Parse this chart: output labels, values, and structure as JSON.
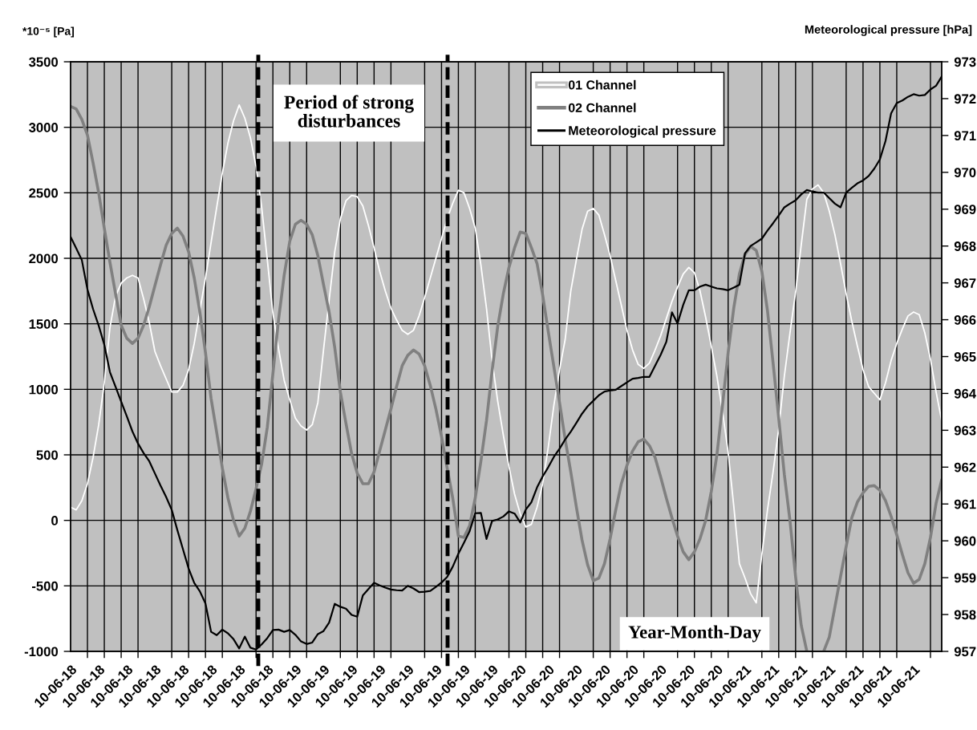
{
  "chart_data": {
    "type": "line",
    "xlabel": "Year-Month-Day",
    "ylabel": "*10⁻⁵ [Pa]",
    "y2label": "Meteorological pressure [hPa]",
    "annotations": [
      "Period of strong\ndisturbances"
    ],
    "categories": [
      "10-06-18",
      null,
      null,
      null,
      null,
      "10-06-18",
      null,
      null,
      null,
      null,
      "10-06-18",
      null,
      null,
      null,
      null,
      "10-06-18",
      null,
      null,
      null,
      null,
      "10-06-18",
      null,
      null,
      null,
      null,
      "10-06-18",
      null,
      null,
      null,
      null,
      "10-06-18",
      null,
      null,
      null,
      null,
      "10-06-18",
      null,
      null,
      null,
      null,
      "10-06-19",
      null,
      null,
      null,
      null,
      "10-06-19",
      null,
      null,
      null,
      null,
      "10-06-19",
      null,
      null,
      null,
      null,
      "10-06-19",
      null,
      null,
      null,
      null,
      "10-06-19",
      null,
      null,
      null,
      null,
      "10-06-19",
      null,
      null,
      null,
      null,
      "10-06-19",
      null,
      null,
      null,
      null,
      "10-06-19",
      null,
      null,
      null,
      null,
      "10-06-20",
      null,
      null,
      null,
      null,
      "10-06-20",
      null,
      null,
      null,
      null,
      "10-06-20",
      null,
      null,
      null,
      null,
      "10-06-20",
      null,
      null,
      null,
      null,
      "10-06-20",
      null,
      null,
      null,
      null,
      "10-06-20",
      null,
      null,
      null,
      null,
      "10-06-20",
      null,
      null,
      null,
      null,
      "10-06-20",
      null,
      null,
      null,
      null,
      "10-06-21",
      null,
      null,
      null,
      null,
      "10-06-21",
      null,
      null,
      null,
      null,
      "10-06-21",
      null,
      null,
      null,
      null,
      "10-06-21",
      null,
      null,
      null,
      null,
      "10-06-21",
      null,
      null,
      null,
      null,
      "10-06-21",
      null,
      null,
      null,
      null,
      "10-06-21",
      null,
      null,
      null,
      null,
      null
    ],
    "ylim": [
      -1000,
      3500
    ],
    "yticks": [
      -1000,
      -500,
      0,
      500,
      1000,
      1500,
      2000,
      2500,
      3000,
      3500
    ],
    "y2lim": [
      957,
      973
    ],
    "y2ticks": [
      957,
      958,
      959,
      960,
      961,
      962,
      963,
      964,
      965,
      966,
      967,
      968,
      969,
      970,
      971,
      972,
      973
    ],
    "grid": true,
    "legend": "top right",
    "series": [
      {
        "name": "01 Channel",
        "color": "#ffffff",
        "values": [
          100,
          80,
          150,
          280,
          480,
          730,
          1050,
          1470,
          1710,
          1810,
          1850,
          1870,
          1850,
          1690,
          1510,
          1290,
          1180,
          1080,
          980,
          980,
          1030,
          1150,
          1350,
          1600,
          1850,
          2120,
          2390,
          2650,
          2880,
          3050,
          3170,
          3070,
          2920,
          2700,
          2390,
          1990,
          1580,
          1310,
          1070,
          920,
          780,
          720,
          690,
          730,
          900,
          1300,
          1680,
          2050,
          2300,
          2440,
          2480,
          2470,
          2400,
          2250,
          2080,
          1900,
          1750,
          1620,
          1530,
          1450,
          1420,
          1450,
          1560,
          1700,
          1850,
          2000,
          2150,
          2300,
          2420,
          2520,
          2500,
          2380,
          2230,
          1950,
          1620,
          1220,
          910,
          650,
          410,
          200,
          50,
          -50,
          -30,
          100,
          280,
          560,
          880,
          1150,
          1380,
          1750,
          1990,
          2220,
          2360,
          2380,
          2330,
          2180,
          2020,
          1830,
          1640,
          1450,
          1300,
          1190,
          1160,
          1200,
          1300,
          1410,
          1540,
          1670,
          1780,
          1880,
          1930,
          1890,
          1750,
          1550,
          1330,
          1100,
          830,
          520,
          110,
          -330,
          -440,
          -560,
          -630,
          -260,
          80,
          370,
          700,
          1100,
          1430,
          1740,
          2100,
          2450,
          2530,
          2560,
          2500,
          2360,
          2180,
          1960,
          1730,
          1520,
          1330,
          1150,
          1020,
          970,
          920,
          1050,
          1220,
          1350,
          1460,
          1560,
          1590,
          1570,
          1430,
          1230,
          980,
          760
        ]
      },
      {
        "name": "02 Channel",
        "color": "#808080",
        "values": [
          3160,
          3140,
          3060,
          2940,
          2730,
          2500,
          2230,
          1970,
          1730,
          1490,
          1390,
          1350,
          1390,
          1490,
          1630,
          1790,
          1950,
          2100,
          2190,
          2230,
          2170,
          2050,
          1850,
          1590,
          1280,
          930,
          670,
          400,
          170,
          0,
          -120,
          -60,
          70,
          240,
          430,
          710,
          1120,
          1530,
          1870,
          2130,
          2260,
          2290,
          2260,
          2180,
          2020,
          1800,
          1590,
          1320,
          980,
          740,
          510,
          360,
          280,
          280,
          370,
          530,
          690,
          850,
          1020,
          1180,
          1260,
          1300,
          1270,
          1180,
          1030,
          850,
          640,
          400,
          170,
          -120,
          -130,
          -40,
          170,
          450,
          760,
          1140,
          1480,
          1730,
          1930,
          2080,
          2200,
          2190,
          2080,
          1960,
          1720,
          1440,
          1170,
          900,
          620,
          370,
          100,
          -150,
          -340,
          -460,
          -440,
          -330,
          -140,
          80,
          280,
          420,
          530,
          600,
          620,
          570,
          480,
          330,
          170,
          20,
          -120,
          -240,
          -300,
          -240,
          -140,
          0,
          220,
          500,
          880,
          1280,
          1620,
          1880,
          2030,
          2090,
          2060,
          1900,
          1600,
          1200,
          780,
          350,
          0,
          -430,
          -800,
          -1000,
          null,
          null,
          -1000,
          -890,
          -660,
          -430,
          -200,
          20,
          140,
          210,
          260,
          265,
          230,
          150,
          30,
          -110,
          -260,
          -400,
          -480,
          -450,
          -330,
          -130,
          130,
          310
        ]
      },
      {
        "name": "Meteorological pressure",
        "color": "#000000",
        "axis": "y2",
        "values": [
          968.25,
          967.94,
          967.62,
          966.82,
          966.29,
          965.84,
          965.32,
          964.58,
          964.18,
          963.78,
          963.38,
          962.97,
          962.64,
          962.38,
          962.16,
          961.83,
          961.5,
          961.19,
          960.84,
          960.29,
          959.77,
          959.25,
          958.86,
          958.63,
          958.3,
          957.53,
          957.44,
          957.59,
          957.49,
          957.33,
          957.08,
          957.4,
          957.1,
          957.05,
          957.19,
          957.36,
          957.58,
          957.59,
          957.53,
          957.58,
          957.45,
          957.27,
          957.2,
          957.24,
          957.47,
          957.55,
          957.78,
          958.29,
          958.21,
          958.16,
          957.99,
          957.94,
          958.52,
          958.69,
          958.86,
          958.79,
          958.73,
          958.68,
          958.66,
          958.65,
          958.78,
          958.71,
          958.61,
          958.62,
          958.64,
          958.75,
          958.87,
          959.02,
          959.3,
          959.65,
          959.95,
          960.26,
          960.75,
          960.76,
          960.05,
          960.54,
          960.58,
          960.66,
          960.8,
          960.74,
          960.5,
          960.85,
          961.05,
          961.45,
          961.75,
          962.0,
          962.28,
          962.5,
          962.75,
          962.96,
          963.2,
          963.45,
          963.65,
          963.8,
          963.95,
          964.05,
          964.08,
          964.1,
          964.2,
          964.3,
          964.4,
          964.42,
          964.45,
          964.45,
          964.75,
          965.05,
          965.4,
          966.2,
          965.9,
          966.4,
          966.8,
          966.8,
          966.9,
          966.95,
          966.9,
          966.85,
          966.83,
          966.8,
          966.87,
          966.95,
          967.8,
          968.0,
          968.1,
          968.2,
          968.42,
          968.62,
          968.83,
          969.05,
          969.15,
          969.24,
          969.4,
          969.52,
          969.48,
          969.45,
          969.45,
          969.3,
          969.15,
          969.05,
          969.45,
          969.58,
          969.7,
          969.78,
          969.9,
          970.1,
          970.35,
          970.85,
          971.6,
          971.88,
          971.95,
          972.05,
          972.12,
          972.08,
          972.1,
          972.25,
          972.35,
          972.6
        ]
      }
    ]
  }
}
